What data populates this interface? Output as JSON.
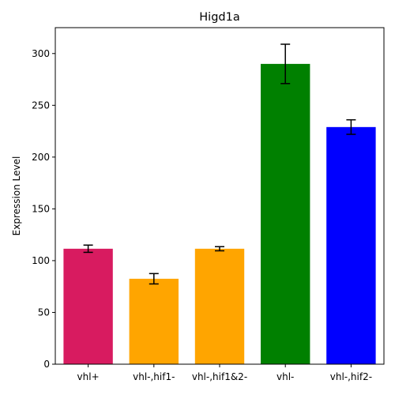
{
  "chart_data": {
    "type": "bar",
    "title": "Higd1a",
    "xlabel": "",
    "ylabel": "Expression Level",
    "categories": [
      "vhl+",
      "vhl-,hif1-",
      "vhl-,hif1&2-",
      "vhl-",
      "vhl-,hif2-"
    ],
    "values": [
      111.5,
      82.5,
      111.5,
      290.0,
      229.0
    ],
    "errors": [
      3.5,
      5.0,
      2.0,
      19.0,
      7.0
    ],
    "colors": [
      "#d81b60",
      "#ffa500",
      "#ffa500",
      "#008000",
      "#0000ff"
    ],
    "ylim": [
      0,
      325
    ],
    "yticks": [
      0,
      50,
      100,
      150,
      200,
      250,
      300
    ],
    "grid": false,
    "legend": "none"
  }
}
